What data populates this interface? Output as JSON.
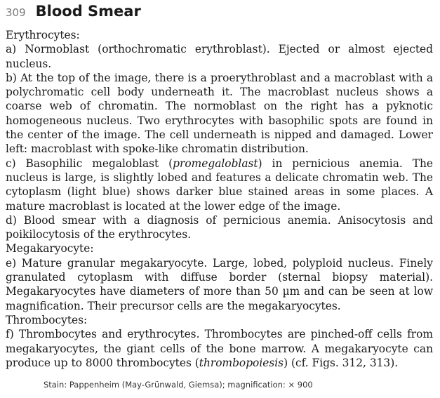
{
  "header": {
    "page_number": "309",
    "title": "Blood Smear"
  },
  "sections": {
    "erythrocytes_heading": "Erythrocytes:",
    "a": "a) Normoblast (orthochromatic erythroblast). Ejected or almost ejected nucleus.",
    "b": "b) At the top of the image, there is a proerythroblast and a macroblast with a polychromatic cell body underneath it. The macroblast nucleus shows a coarse web of chromatin. The normoblast on the right has a pyknotic homogeneous nucleus. Two erythrocytes with basophilic spots are found in the center of the image. The cell underneath is nipped and damaged. Lower left: macroblast with spoke-like chromatin distribution.",
    "c_pre": "c) Basophilic megaloblast (",
    "c_italic": "promegaloblast",
    "c_post": ") in pernicious anemia. The nucleus is large, is slightly lobed and features a delicate chromatin web. The cytoplasm (light blue) shows darker blue stained areas in some places. A mature macroblast is located at the lower edge of the image.",
    "d": "d) Blood smear with a diagnosis of pernicious anemia. Anisocytosis and poikilocytosis of the erythrocytes.",
    "megakaryocyte_heading": "Megakaryocyte:",
    "e": "e) Mature granular megakaryocyte. Large, lobed, polyploid nucleus. Finely granulated cytoplasm with diffuse border (sternal biopsy material). Megakaryocytes have diameters of more than 50 µm and can be seen at low magnification. Their precursor cells are the megakaryocytes.",
    "thrombocytes_heading": "Thrombocytes:",
    "f_pre": "f) Thrombocytes and erythrocytes. Thrombocytes are pinched-off cells from megakaryocytes, the giant cells of the bone marrow. A megakaryocyte can produce up to 8000 thrombocytes (",
    "f_italic": "thrombopoiesis",
    "f_post": ") (cf. Figs. 312, 313)."
  },
  "footer": {
    "stain_note": "Stain: Pappenheim (May-Grünwald, Giemsa); magnification: × 900"
  }
}
